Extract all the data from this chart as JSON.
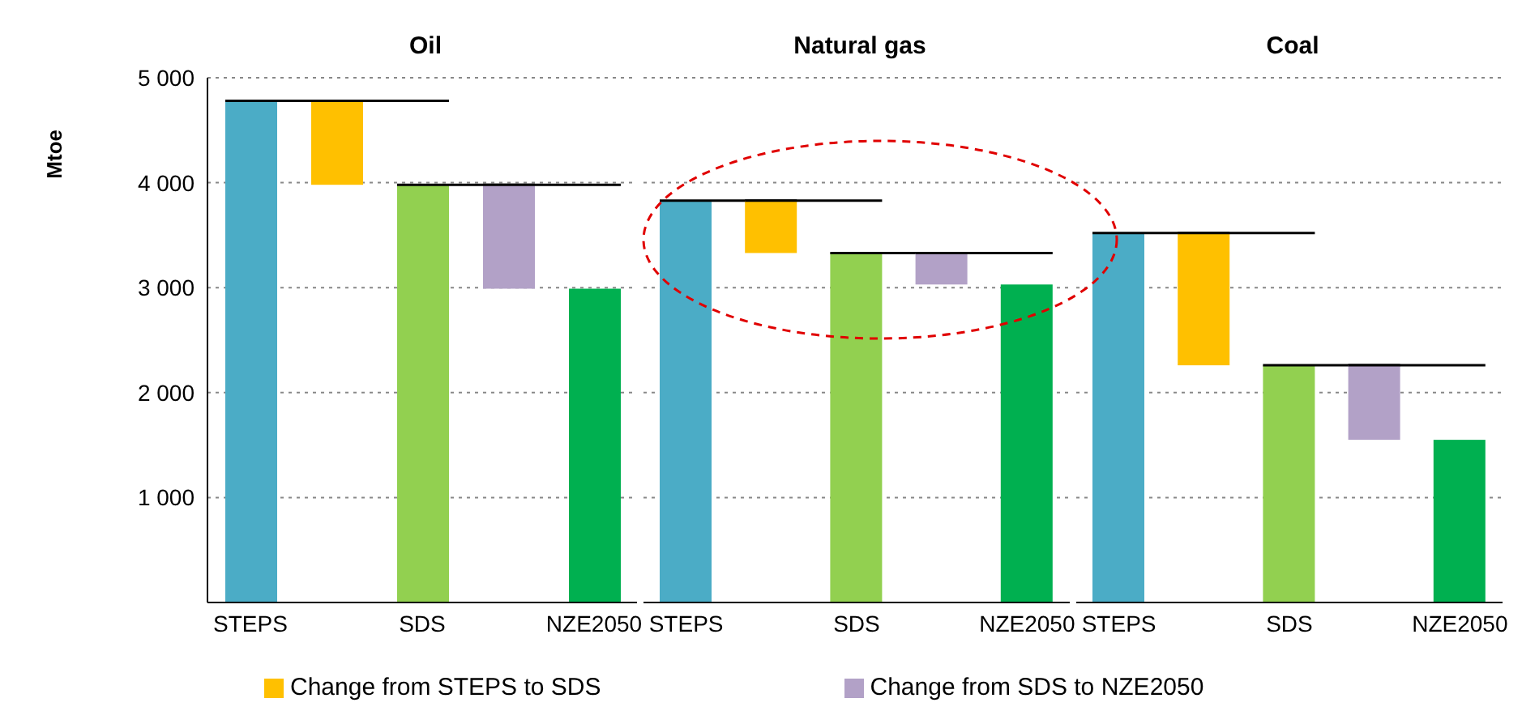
{
  "chart_data": [
    {
      "type": "bar",
      "title": "Oil",
      "ylabel": "Mtoe",
      "categories": [
        "STEPS",
        null,
        "SDS",
        null,
        "NZE2050"
      ],
      "ylim": [
        0,
        5000
      ],
      "yticks": [
        {
          "value": 0,
          "label": null
        },
        {
          "value": 1000,
          "label": "1 000"
        },
        {
          "value": 2000,
          "label": "2 000"
        },
        {
          "value": 3000,
          "label": "3 000"
        },
        {
          "value": 4000,
          "label": "4 000"
        },
        {
          "value": 5000,
          "label": "5 000"
        }
      ],
      "grid": "y",
      "legend": "bottom",
      "series": [
        {
          "values": [
            4780,
            null,
            3980,
            null,
            2990
          ],
          "colors": [
            "#4bacc6",
            null,
            "#92d050",
            null,
            "#00b050"
          ]
        },
        {
          "name": "Change from STEPS to SDS",
          "color": "#ffc000",
          "values": [
            null,
            -800,
            null,
            null,
            null
          ],
          "base": [
            null,
            4780,
            null,
            null,
            null
          ]
        },
        {
          "name": "Change from SDS to NZE2050",
          "color": "#b2a1c7",
          "values": [
            null,
            null,
            null,
            -990,
            null
          ],
          "base": [
            null,
            null,
            null,
            3980,
            null
          ]
        }
      ]
    },
    {
      "type": "bar",
      "title": "Natural gas",
      "categories": [
        "STEPS",
        null,
        "SDS",
        null,
        "NZE2050"
      ],
      "ylim": [
        0,
        5000
      ],
      "yticks": [
        1000,
        2000,
        3000,
        4000,
        5000
      ],
      "grid": "y",
      "tick_labels": "x",
      "series": [
        {
          "values": [
            3830,
            null,
            3330,
            null,
            3030
          ],
          "colors": [
            "#4bacc6",
            null,
            "#92d050",
            null,
            "#00b050"
          ]
        },
        {
          "color": "#ffc000",
          "values": [
            null,
            -500,
            null,
            null,
            null
          ],
          "base": [
            null,
            3830,
            null,
            null,
            null
          ]
        },
        {
          "color": "#b2a1c7",
          "values": [
            null,
            null,
            null,
            -300,
            null
          ],
          "base": [
            null,
            null,
            null,
            3330,
            null
          ]
        }
      ]
    },
    {
      "type": "bar",
      "title": "Coal",
      "categories": [
        "STEPS",
        null,
        "SDS",
        null,
        "NZE2050"
      ],
      "ylim": [
        0,
        5000
      ],
      "yticks": [
        1000,
        2000,
        3000,
        4000,
        5000
      ],
      "grid": "y",
      "tick_labels": "x",
      "series": [
        {
          "values": [
            3520,
            null,
            2260,
            null,
            1550
          ],
          "colors": [
            "#4bacc6",
            null,
            "#92d050",
            null,
            "#00b050"
          ]
        },
        {
          "color": "#ffc000",
          "values": [
            null,
            -1260,
            null,
            null,
            null
          ],
          "base": [
            null,
            3520,
            null,
            null,
            null
          ]
        },
        {
          "color": "#b2a1c7",
          "values": [
            null,
            null,
            null,
            -710,
            null
          ],
          "base": [
            null,
            null,
            null,
            2260,
            null
          ]
        }
      ]
    }
  ]
}
